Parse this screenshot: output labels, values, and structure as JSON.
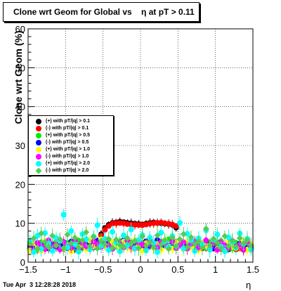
{
  "header": {
    "title": "Clone wrt Geom for Global vs    η at pT > 0.11"
  },
  "footer": {
    "date": "Tue Apr  3 12:28:28 2018"
  },
  "chart_data": {
    "type": "scatter",
    "title": "Clone wrt Geom for Global vs    η at pT > 0.11",
    "xlabel": "η",
    "ylabel": "Clone wrt Geom (%)",
    "xlim": [
      -1.5,
      1.5
    ],
    "ylim": [
      0,
      60
    ],
    "x_ticks": [
      "−1.5",
      "−1",
      "−0.5",
      "0",
      "0.5",
      "1",
      "1.5"
    ],
    "y_ticks": [
      "0",
      "10",
      "20",
      "30",
      "40",
      "50",
      "60"
    ],
    "grid": true,
    "legend_position": "left-middle",
    "x": [
      -1.475,
      -1.425,
      -1.375,
      -1.325,
      -1.275,
      -1.225,
      -1.175,
      -1.125,
      -1.075,
      -1.025,
      -0.975,
      -0.925,
      -0.875,
      -0.825,
      -0.775,
      -0.725,
      -0.675,
      -0.625,
      -0.575,
      -0.525,
      -0.475,
      -0.425,
      -0.375,
      -0.325,
      -0.275,
      -0.225,
      -0.175,
      -0.125,
      -0.075,
      -0.025,
      0.025,
      0.075,
      0.125,
      0.175,
      0.225,
      0.275,
      0.325,
      0.375,
      0.425,
      0.475,
      0.525,
      0.575,
      0.625,
      0.675,
      0.725,
      0.775,
      0.825,
      0.875,
      0.925,
      0.975,
      1.025,
      1.075,
      1.125,
      1.175,
      1.225,
      1.275,
      1.325,
      1.375,
      1.425,
      1.475
    ],
    "series": [
      {
        "name": "(+) with pT/|q| > 0.1",
        "color": "#000000",
        "values": [
          3.5,
          3.2,
          3.8,
          3.0,
          3.6,
          4.1,
          3.3,
          3.9,
          4.2,
          3.4,
          3.7,
          4.0,
          3.5,
          4.3,
          3.8,
          4.4,
          4.1,
          4.6,
          4.9,
          7.2,
          8.8,
          9.6,
          10.1,
          10.2,
          10.4,
          10.3,
          10.1,
          10.0,
          9.9,
          9.8,
          9.7,
          9.9,
          10.1,
          10.2,
          10.1,
          10.0,
          9.9,
          9.8,
          9.6,
          8.9,
          4.6,
          4.2,
          3.8,
          4.3,
          3.9,
          4.1,
          3.6,
          4.0,
          3.4,
          3.8,
          4.2,
          3.5,
          3.9,
          3.3,
          4.0,
          3.6,
          3.8,
          3.2,
          3.5,
          3.3
        ]
      },
      {
        "name": "(-) with pT/|q| > 0.1",
        "color": "#ff0000",
        "values": [
          3.3,
          3.6,
          3.1,
          3.7,
          3.4,
          3.9,
          3.5,
          4.0,
          3.6,
          4.1,
          3.8,
          3.5,
          4.2,
          3.9,
          4.0,
          4.3,
          4.5,
          4.8,
          5.2,
          6.8,
          8.3,
          9.3,
          9.9,
          10.0,
          10.1,
          10.0,
          9.8,
          9.7,
          9.6,
          9.6,
          9.5,
          9.7,
          9.9,
          10.0,
          10.1,
          10.2,
          10.0,
          9.9,
          9.7,
          9.3,
          4.7,
          4.1,
          4.0,
          3.9,
          4.2,
          3.7,
          3.9,
          3.6,
          4.1,
          3.5,
          3.8,
          3.4,
          3.7,
          3.6,
          3.9,
          3.3,
          3.5,
          3.4,
          3.2,
          3.6
        ]
      },
      {
        "name": "(+) with pT/|q| > 0.5",
        "color": "#00ee00",
        "values": [
          3.8,
          4.5,
          3.2,
          5.1,
          3.9,
          4.6,
          3.4,
          5.3,
          4.2,
          3.6,
          5.0,
          4.4,
          3.7,
          5.5,
          4.1,
          4.8,
          3.5,
          5.2,
          4.6,
          5.8,
          4.3,
          5.6,
          4.9,
          4.0,
          5.4,
          4.7,
          3.9,
          5.1,
          4.5,
          3.8,
          5.0,
          4.2,
          5.7,
          4.6,
          3.6,
          5.3,
          4.4,
          5.9,
          4.8,
          4.1,
          5.5,
          3.9,
          4.7,
          5.2,
          4.0,
          5.6,
          4.3,
          3.7,
          5.1,
          4.5,
          3.8,
          5.4,
          4.2,
          4.9,
          3.5,
          5.0,
          4.4,
          3.9,
          4.6,
          3.6
        ]
      },
      {
        "name": "(-) with pT/|q| > 0.5",
        "color": "#0000ff",
        "values": [
          4.1,
          3.4,
          4.9,
          3.8,
          5.2,
          3.5,
          4.6,
          3.9,
          5.0,
          4.3,
          3.6,
          5.3,
          4.0,
          3.7,
          5.1,
          4.4,
          4.8,
          3.8,
          5.5,
          4.2,
          5.0,
          4.5,
          3.9,
          5.3,
          4.1,
          5.6,
          4.4,
          3.7,
          5.0,
          4.6,
          3.9,
          5.4,
          4.2,
          4.8,
          5.7,
          4.0,
          5.1,
          4.3,
          3.8,
          5.2,
          4.5,
          5.0,
          3.9,
          4.4,
          5.3,
          3.7,
          4.9,
          5.4,
          4.1,
          3.6,
          5.0,
          4.3,
          3.8,
          5.1,
          4.6,
          3.9,
          4.8,
          4.2,
          3.7,
          4.4
        ]
      },
      {
        "name": "(+) with pT/|q| > 1.0",
        "color": "#ffff00",
        "values": [
          3.0,
          4.8,
          3.6,
          2.9,
          5.4,
          4.0,
          3.2,
          4.7,
          5.8,
          3.5,
          4.2,
          2.8,
          5.1,
          3.9,
          4.6,
          3.3,
          5.5,
          4.1,
          3.7,
          5.9,
          4.4,
          3.1,
          5.0,
          4.5,
          3.8,
          5.3,
          4.0,
          3.4,
          5.6,
          4.3,
          3.0,
          4.9,
          5.2,
          3.6,
          4.7,
          3.2,
          5.7,
          4.1,
          3.5,
          5.1,
          4.6,
          3.3,
          5.4,
          3.9,
          4.5,
          3.1,
          5.0,
          4.2,
          3.7,
          5.6,
          3.4,
          4.8,
          3.0,
          5.2,
          4.0,
          3.6,
          4.4,
          5.5,
          3.2,
          4.6
        ]
      },
      {
        "name": "(-) with pT/|q| > 1.0",
        "color": "#ff00ff",
        "values": [
          4.4,
          3.1,
          5.0,
          4.2,
          3.5,
          5.6,
          3.8,
          4.6,
          3.3,
          5.2,
          4.0,
          3.7,
          5.4,
          3.2,
          4.9,
          4.1,
          3.6,
          5.3,
          4.5,
          3.9,
          5.7,
          4.3,
          3.4,
          5.1,
          4.7,
          3.8,
          5.5,
          4.0,
          3.5,
          5.0,
          4.6,
          3.3,
          5.8,
          4.2,
          3.7,
          5.2,
          4.8,
          3.9,
          5.4,
          3.6,
          4.4,
          5.1,
          3.5,
          4.7,
          5.3,
          3.8,
          4.1,
          5.6,
          3.4,
          4.9,
          3.2,
          5.0,
          4.3,
          3.6,
          5.5,
          3.9,
          4.5,
          3.3,
          5.2,
          4.0
        ]
      },
      {
        "name": "(+) with pT/|q| > 2.0",
        "color": "#00ffff",
        "values": [
          5.2,
          2.6,
          6.8,
          3.4,
          7.5,
          4.8,
          2.9,
          6.2,
          5.5,
          12.2,
          3.8,
          8.0,
          4.6,
          2.7,
          7.2,
          5.9,
          3.3,
          6.6,
          9.5,
          4.2,
          6.0,
          3.1,
          7.8,
          5.0,
          2.8,
          6.9,
          4.4,
          8.4,
          3.6,
          5.7,
          7.0,
          3.0,
          6.3,
          4.9,
          2.6,
          7.6,
          5.3,
          3.9,
          6.7,
          4.1,
          10.1,
          3.5,
          7.3,
          5.6,
          2.9,
          6.1,
          4.5,
          8.2,
          3.2,
          5.8,
          7.1,
          4.0,
          2.8,
          6.4,
          5.1,
          3.7,
          7.4,
          4.7,
          6.0,
          3.3
        ]
      },
      {
        "name": "(-) with pT/|q| > 2.0",
        "color": "#55cc55",
        "values": [
          4.7,
          6.1,
          3.4,
          7.4,
          5.2,
          3.9,
          6.8,
          4.3,
          5.9,
          3.6,
          7.1,
          4.9,
          6.3,
          3.8,
          5.6,
          7.7,
          4.1,
          6.5,
          3.5,
          5.4,
          4.6,
          6.0,
          3.7,
          5.8,
          4.4,
          3.9,
          6.2,
          4.8,
          5.5,
          3.6,
          6.6,
          4.2,
          5.1,
          3.8,
          6.9,
          4.5,
          5.7,
          3.4,
          6.3,
          4.0,
          5.9,
          7.2,
          3.9,
          6.4,
          4.6,
          5.3,
          3.7,
          8.6,
          4.4,
          6.0,
          5.0,
          3.6,
          6.7,
          4.1,
          5.5,
          3.9,
          6.2,
          4.8,
          5.7,
          4.3
        ]
      }
    ]
  }
}
